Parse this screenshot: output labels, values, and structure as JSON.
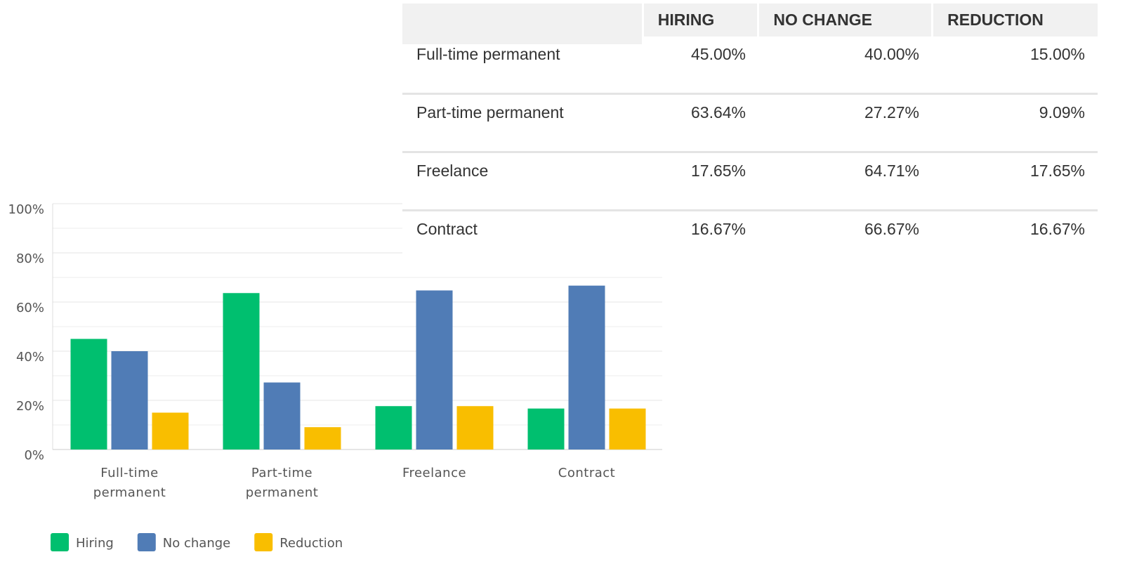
{
  "chart_data": {
    "type": "bar",
    "categories": [
      "Full-time permanent",
      "Part-time permanent",
      "Freelance",
      "Contract"
    ],
    "series": [
      {
        "name": "Hiring",
        "color": "#00bf6f",
        "values": [
          45,
          63.64,
          17.65,
          16.67
        ]
      },
      {
        "name": "No change",
        "color": "#507cb6",
        "values": [
          40,
          27.27,
          64.71,
          66.67
        ]
      },
      {
        "name": "Reduction",
        "color": "#f9be00",
        "values": [
          15,
          9.09,
          17.65,
          16.67
        ]
      }
    ],
    "ylim": [
      0,
      100
    ],
    "yticks": [
      {
        "value": 0,
        "label": "0%"
      },
      {
        "value": 20,
        "label": "20%"
      },
      {
        "value": 40,
        "label": "40%"
      },
      {
        "value": 60,
        "label": "60%"
      },
      {
        "value": 80,
        "label": "80%"
      },
      {
        "value": 100,
        "label": "100%"
      }
    ],
    "minor_grid": [
      10,
      30,
      50,
      70,
      90
    ],
    "grid": true,
    "legend": "bottom"
  },
  "table": {
    "columns": [
      "HIRING",
      "NO CHANGE",
      "REDUCTION"
    ],
    "rows": [
      {
        "label": "Full-time permanent",
        "cells": [
          "45.00%",
          "40.00%",
          "15.00%"
        ]
      },
      {
        "label": "Part-time permanent",
        "cells": [
          "63.64%",
          "27.27%",
          "9.09%"
        ]
      },
      {
        "label": "Freelance",
        "cells": [
          "17.65%",
          "64.71%",
          "17.65%"
        ]
      },
      {
        "label": "Contract",
        "cells": [
          "16.67%",
          "66.67%",
          "16.67%"
        ]
      }
    ]
  }
}
